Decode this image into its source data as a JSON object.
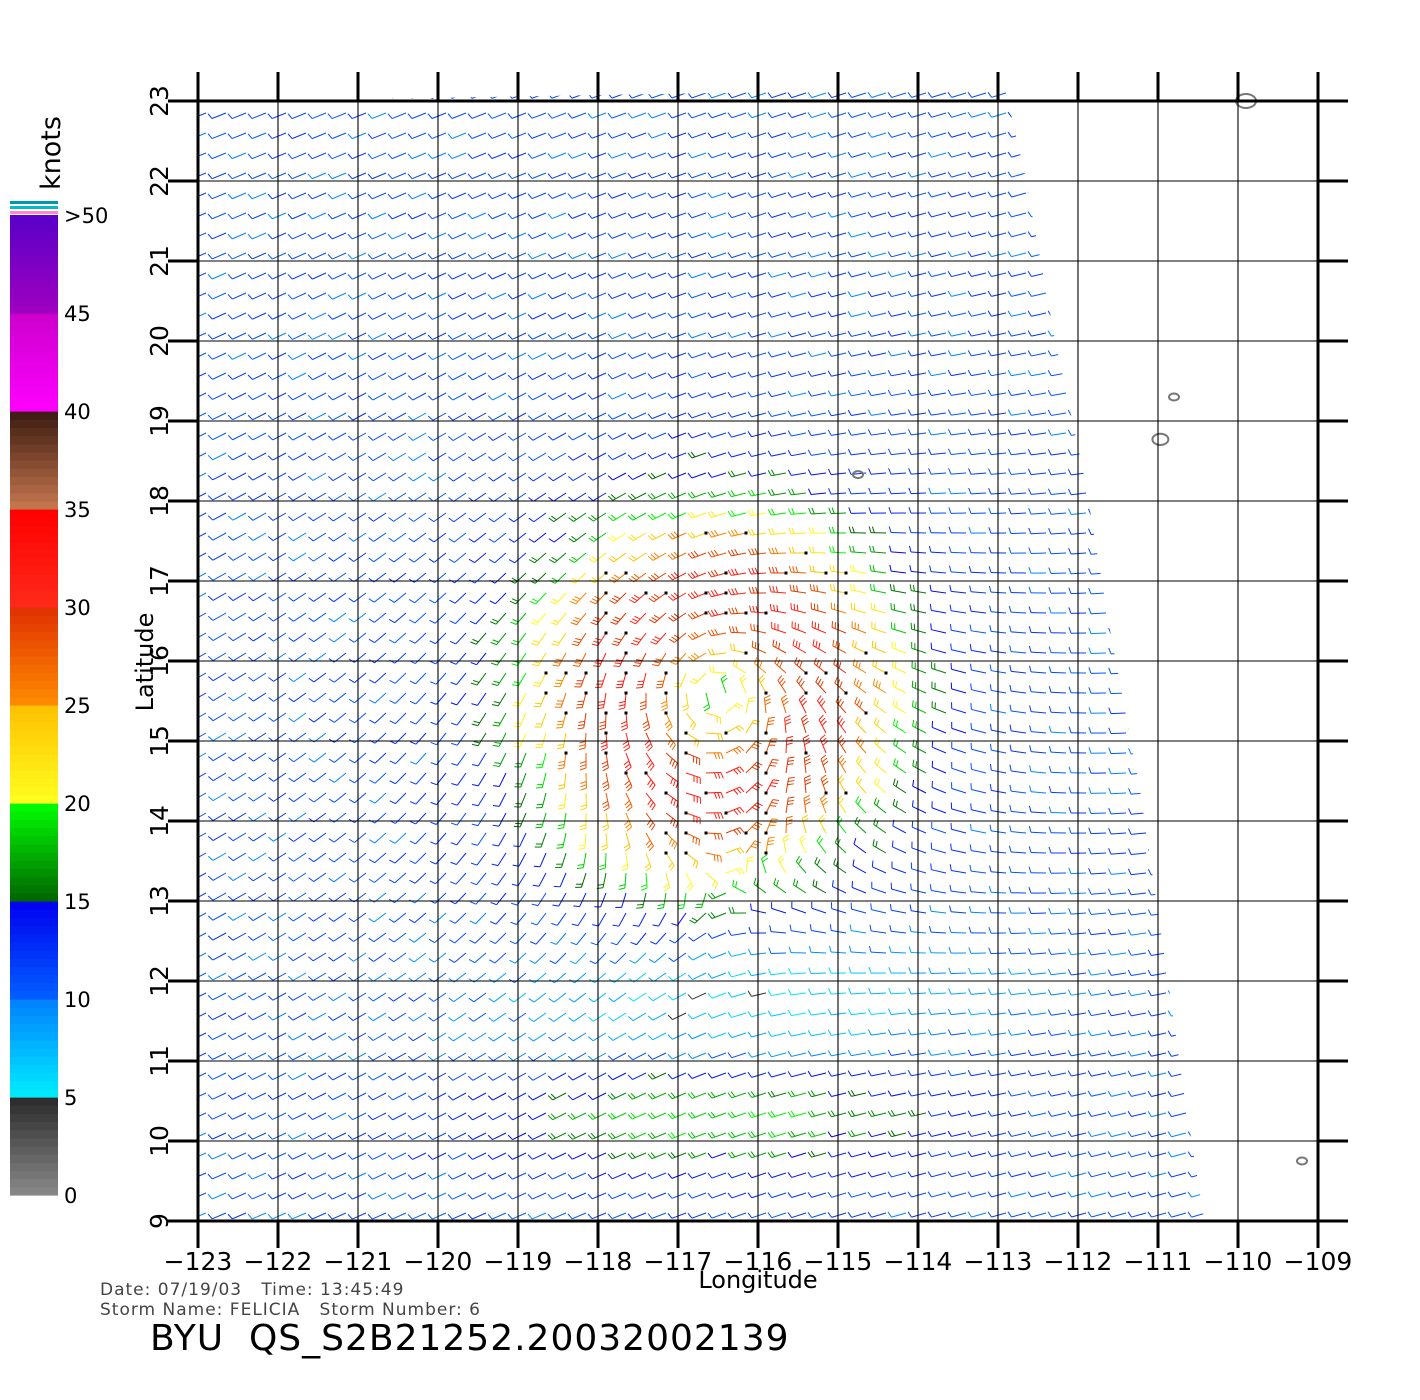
{
  "chart_data": {
    "type": "vector-field",
    "xlabel": "Longitude",
    "ylabel": "Latitude",
    "xlim": [
      -123,
      -109
    ],
    "ylim": [
      9,
      23
    ],
    "x_ticks": [
      "-123",
      "-122",
      "-121",
      "-120",
      "-119",
      "-118",
      "-117",
      "-116",
      "-115",
      "-114",
      "-113",
      "-112",
      "-111",
      "-110",
      "-109"
    ],
    "y_ticks": [
      "9",
      "10",
      "11",
      "12",
      "13",
      "14",
      "15",
      "16",
      "17",
      "18",
      "19",
      "20",
      "21",
      "22",
      "23"
    ],
    "grid": true,
    "units": "knots",
    "colorbar": {
      "labels": [
        "0",
        "5",
        "10",
        "15",
        "20",
        "25",
        "30",
        "35",
        "40",
        "45",
        ">50"
      ],
      "bands": [
        {
          "min": 0,
          "max": 5,
          "colors": [
            "#8a8a8a",
            "#2a2a2a"
          ]
        },
        {
          "min": 5,
          "max": 10,
          "colors": [
            "#00eeff",
            "#0080ff"
          ]
        },
        {
          "min": 10,
          "max": 15,
          "colors": [
            "#0060ff",
            "#0000f0"
          ]
        },
        {
          "min": 15,
          "max": 20,
          "colors": [
            "#006400",
            "#00ff00"
          ]
        },
        {
          "min": 20,
          "max": 25,
          "colors": [
            "#ffff20",
            "#ffc000"
          ]
        },
        {
          "min": 25,
          "max": 30,
          "colors": [
            "#ff8c00",
            "#e03000"
          ]
        },
        {
          "min": 30,
          "max": 35,
          "colors": [
            "#ff2a1a",
            "#ff0000"
          ]
        },
        {
          "min": 35,
          "max": 40,
          "colors": [
            "#c87850",
            "#3a1a10"
          ]
        },
        {
          "min": 40,
          "max": 45,
          "colors": [
            "#ff00ff",
            "#cc00cc"
          ]
        },
        {
          "min": 45,
          "max": 50,
          "colors": [
            "#a000c0",
            "#5a00c8"
          ]
        }
      ]
    },
    "storm_center": [
      -116.5,
      15.6
    ],
    "islands": [
      {
        "lon": -109.9,
        "lat": 23.0
      },
      {
        "lon": -110.8,
        "lat": 19.3
      },
      {
        "lon": -110.97,
        "lat": 18.77
      },
      {
        "lon": -114.75,
        "lat": 18.33
      },
      {
        "lon": -109.2,
        "lat": 9.75
      }
    ]
  },
  "info": {
    "date_line": "Date: 07/19/03   Time: 13:45:49",
    "storm_line": "Storm Name: FELICIA   Storm Number: 6",
    "product_id": "BYU  QS_S2B21252.20032002139"
  }
}
